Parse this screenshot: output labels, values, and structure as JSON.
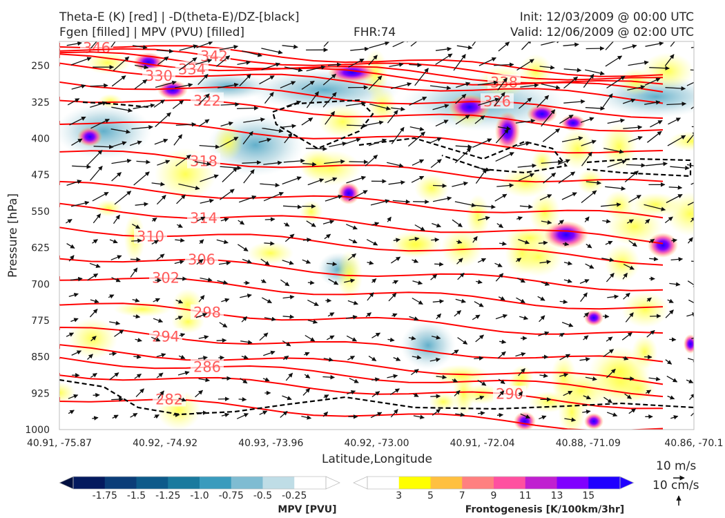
{
  "header": {
    "title_line1": "Theta-E (K) [red] | -D(theta-E)/DZ-[black]",
    "title_line2": "Fgen [filled] | MPV (PVU) [filled]",
    "fhr": "FHR:74",
    "init": "Init: 12/03/2009 @ 00:00 UTC",
    "valid": "Valid: 12/06/2009 @ 02:00 UTC"
  },
  "chart_data": {
    "type": "cross-section",
    "xlabel": "Latitude,Longitude",
    "ylabel": "Pressure [hPa]",
    "x_ticks": [
      "40.91, -75.87",
      "40.92, -74.92",
      "40.93, -73.96",
      "40.92, -73.00",
      "40.91, -72.04",
      "40.88, -71.09",
      "40.86, -70.1"
    ],
    "y_ticks": [
      250,
      325,
      400,
      475,
      550,
      625,
      700,
      775,
      850,
      925,
      1000
    ],
    "ylim": [
      1000,
      200
    ],
    "y_scale": "linear, inverted",
    "theta_e_contours": [
      {
        "value": 346,
        "label": "346"
      },
      {
        "value": 342,
        "label": "342"
      },
      {
        "value": 338,
        "label": "338"
      },
      {
        "value": 334,
        "label": "334"
      },
      {
        "value": 330,
        "label": "330"
      },
      {
        "value": 326,
        "label": "326"
      },
      {
        "value": 322,
        "label": "322"
      },
      {
        "value": 318,
        "label": "318"
      },
      {
        "value": 314,
        "label": "314"
      },
      {
        "value": 310,
        "label": "310"
      },
      {
        "value": 306,
        "label": "306"
      },
      {
        "value": 302,
        "label": "302"
      },
      {
        "value": 298,
        "label": "298"
      },
      {
        "value": 294,
        "label": "294"
      },
      {
        "value": 290,
        "label": "290"
      },
      {
        "value": 286,
        "label": "286"
      },
      {
        "value": 282,
        "label": "282"
      }
    ],
    "mpv_colorbar": {
      "label": "MPV [PVU]",
      "ticks": [
        "-1.75",
        "-1.5",
        "-1.25",
        "-1.0",
        "-0.75",
        "-0.5",
        "-0.25"
      ],
      "colors": [
        "#041a5e",
        "#0b3d78",
        "#0d5a8a",
        "#1a7a9e",
        "#3a9bbd",
        "#7fbcd2",
        "#bfdde6",
        "#ffffff"
      ]
    },
    "fgen_colorbar": {
      "label": "Frontogenesis [K/100km/3hr]",
      "ticks": [
        "3",
        "5",
        "7",
        "9",
        "11",
        "13",
        "15"
      ],
      "colors": [
        "#ffffff",
        "#ffff00",
        "#ffc040",
        "#ff8080",
        "#ff50a0",
        "#c020d0",
        "#8000ff",
        "#2000ff"
      ]
    },
    "wind_key": {
      "u_label": "10 m/s",
      "w_label": "10 cm/s"
    }
  },
  "colors": {
    "theta_e": "#ff0000",
    "dthetae_dz": "#000000",
    "mpv_outline": "#8aa0c0"
  }
}
